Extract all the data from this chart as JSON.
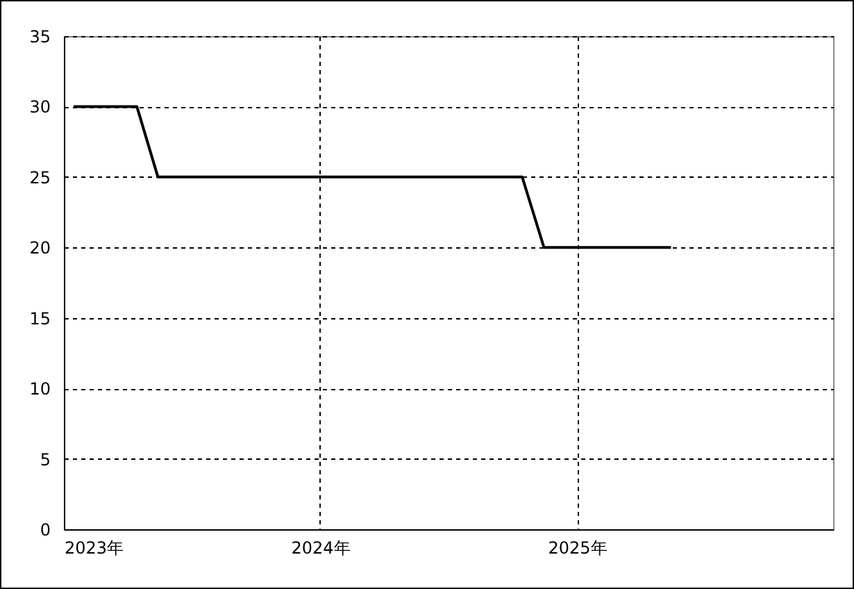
{
  "chart_data": {
    "type": "line",
    "x": [
      "2023-01-15",
      "2023-04-15",
      "2023-05-15",
      "2024-10-15",
      "2024-11-15",
      "2025-05-15"
    ],
    "values": [
      30,
      30,
      25,
      25,
      20,
      20
    ],
    "color": "#000000",
    "xlim": [
      "2023",
      "2026"
    ],
    "xticks": [
      {
        "value": "2023",
        "label": "2023年"
      },
      {
        "value": "2024",
        "label": "2024年"
      },
      {
        "value": "2025",
        "label": "2025年"
      }
    ],
    "ylim": [
      0,
      35
    ],
    "yticks": [
      0,
      5,
      10,
      15,
      20,
      25,
      30,
      35
    ],
    "grid": true
  }
}
